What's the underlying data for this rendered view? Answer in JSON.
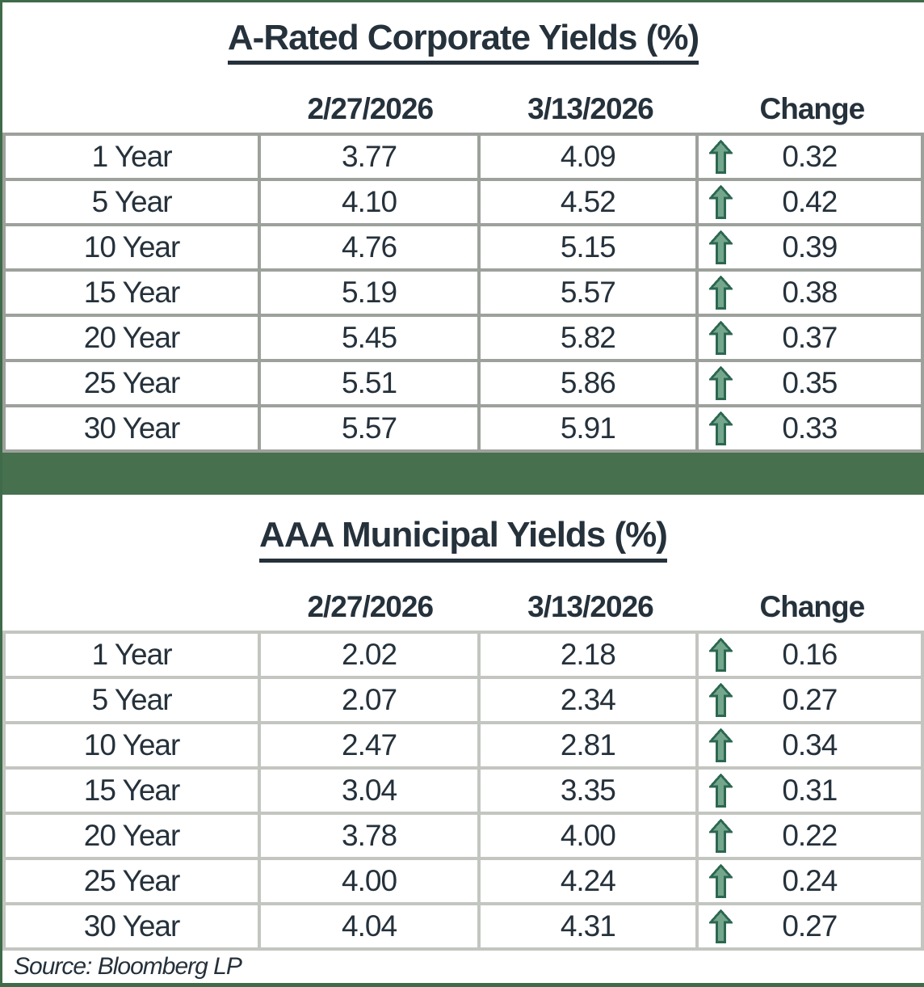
{
  "colors": {
    "separator_bar_green": "#47704f",
    "frame_green": "#3f6b4a",
    "arrow_green_fill": "#74a68c",
    "arrow_green_outline": "#2c6751",
    "table1_border_gray": "#9da19c",
    "table2_border_gray": "#c3c6c0",
    "text_ink": "#25313b"
  },
  "tables": [
    {
      "title": "A-Rated Corporate Yields (%)",
      "columns": [
        "2/27/2026",
        "3/13/2026",
        "Change"
      ],
      "rows": [
        {
          "label": "1 Year",
          "prev": "3.77",
          "curr": "4.09",
          "change": "0.32",
          "direction": "up"
        },
        {
          "label": "5 Year",
          "prev": "4.10",
          "curr": "4.52",
          "change": "0.42",
          "direction": "up"
        },
        {
          "label": "10 Year",
          "prev": "4.76",
          "curr": "5.15",
          "change": "0.39",
          "direction": "up"
        },
        {
          "label": "15 Year",
          "prev": "5.19",
          "curr": "5.57",
          "change": "0.38",
          "direction": "up"
        },
        {
          "label": "20 Year",
          "prev": "5.45",
          "curr": "5.82",
          "change": "0.37",
          "direction": "up"
        },
        {
          "label": "25 Year",
          "prev": "5.51",
          "curr": "5.86",
          "change": "0.35",
          "direction": "up"
        },
        {
          "label": "30 Year",
          "prev": "5.57",
          "curr": "5.91",
          "change": "0.33",
          "direction": "up"
        }
      ]
    },
    {
      "title": "AAA Municipal Yields (%)",
      "columns": [
        "2/27/2026",
        "3/13/2026",
        "Change"
      ],
      "rows": [
        {
          "label": "1 Year",
          "prev": "2.02",
          "curr": "2.18",
          "change": "0.16",
          "direction": "up"
        },
        {
          "label": "5 Year",
          "prev": "2.07",
          "curr": "2.34",
          "change": "0.27",
          "direction": "up"
        },
        {
          "label": "10 Year",
          "prev": "2.47",
          "curr": "2.81",
          "change": "0.34",
          "direction": "up"
        },
        {
          "label": "15 Year",
          "prev": "3.04",
          "curr": "3.35",
          "change": "0.31",
          "direction": "up"
        },
        {
          "label": "20 Year",
          "prev": "3.78",
          "curr": "4.00",
          "change": "0.22",
          "direction": "up"
        },
        {
          "label": "25 Year",
          "prev": "4.00",
          "curr": "4.24",
          "change": "0.24",
          "direction": "up"
        },
        {
          "label": "30 Year",
          "prev": "4.04",
          "curr": "4.31",
          "change": "0.27",
          "direction": "up"
        }
      ]
    }
  ],
  "source": "Source: Bloomberg LP"
}
